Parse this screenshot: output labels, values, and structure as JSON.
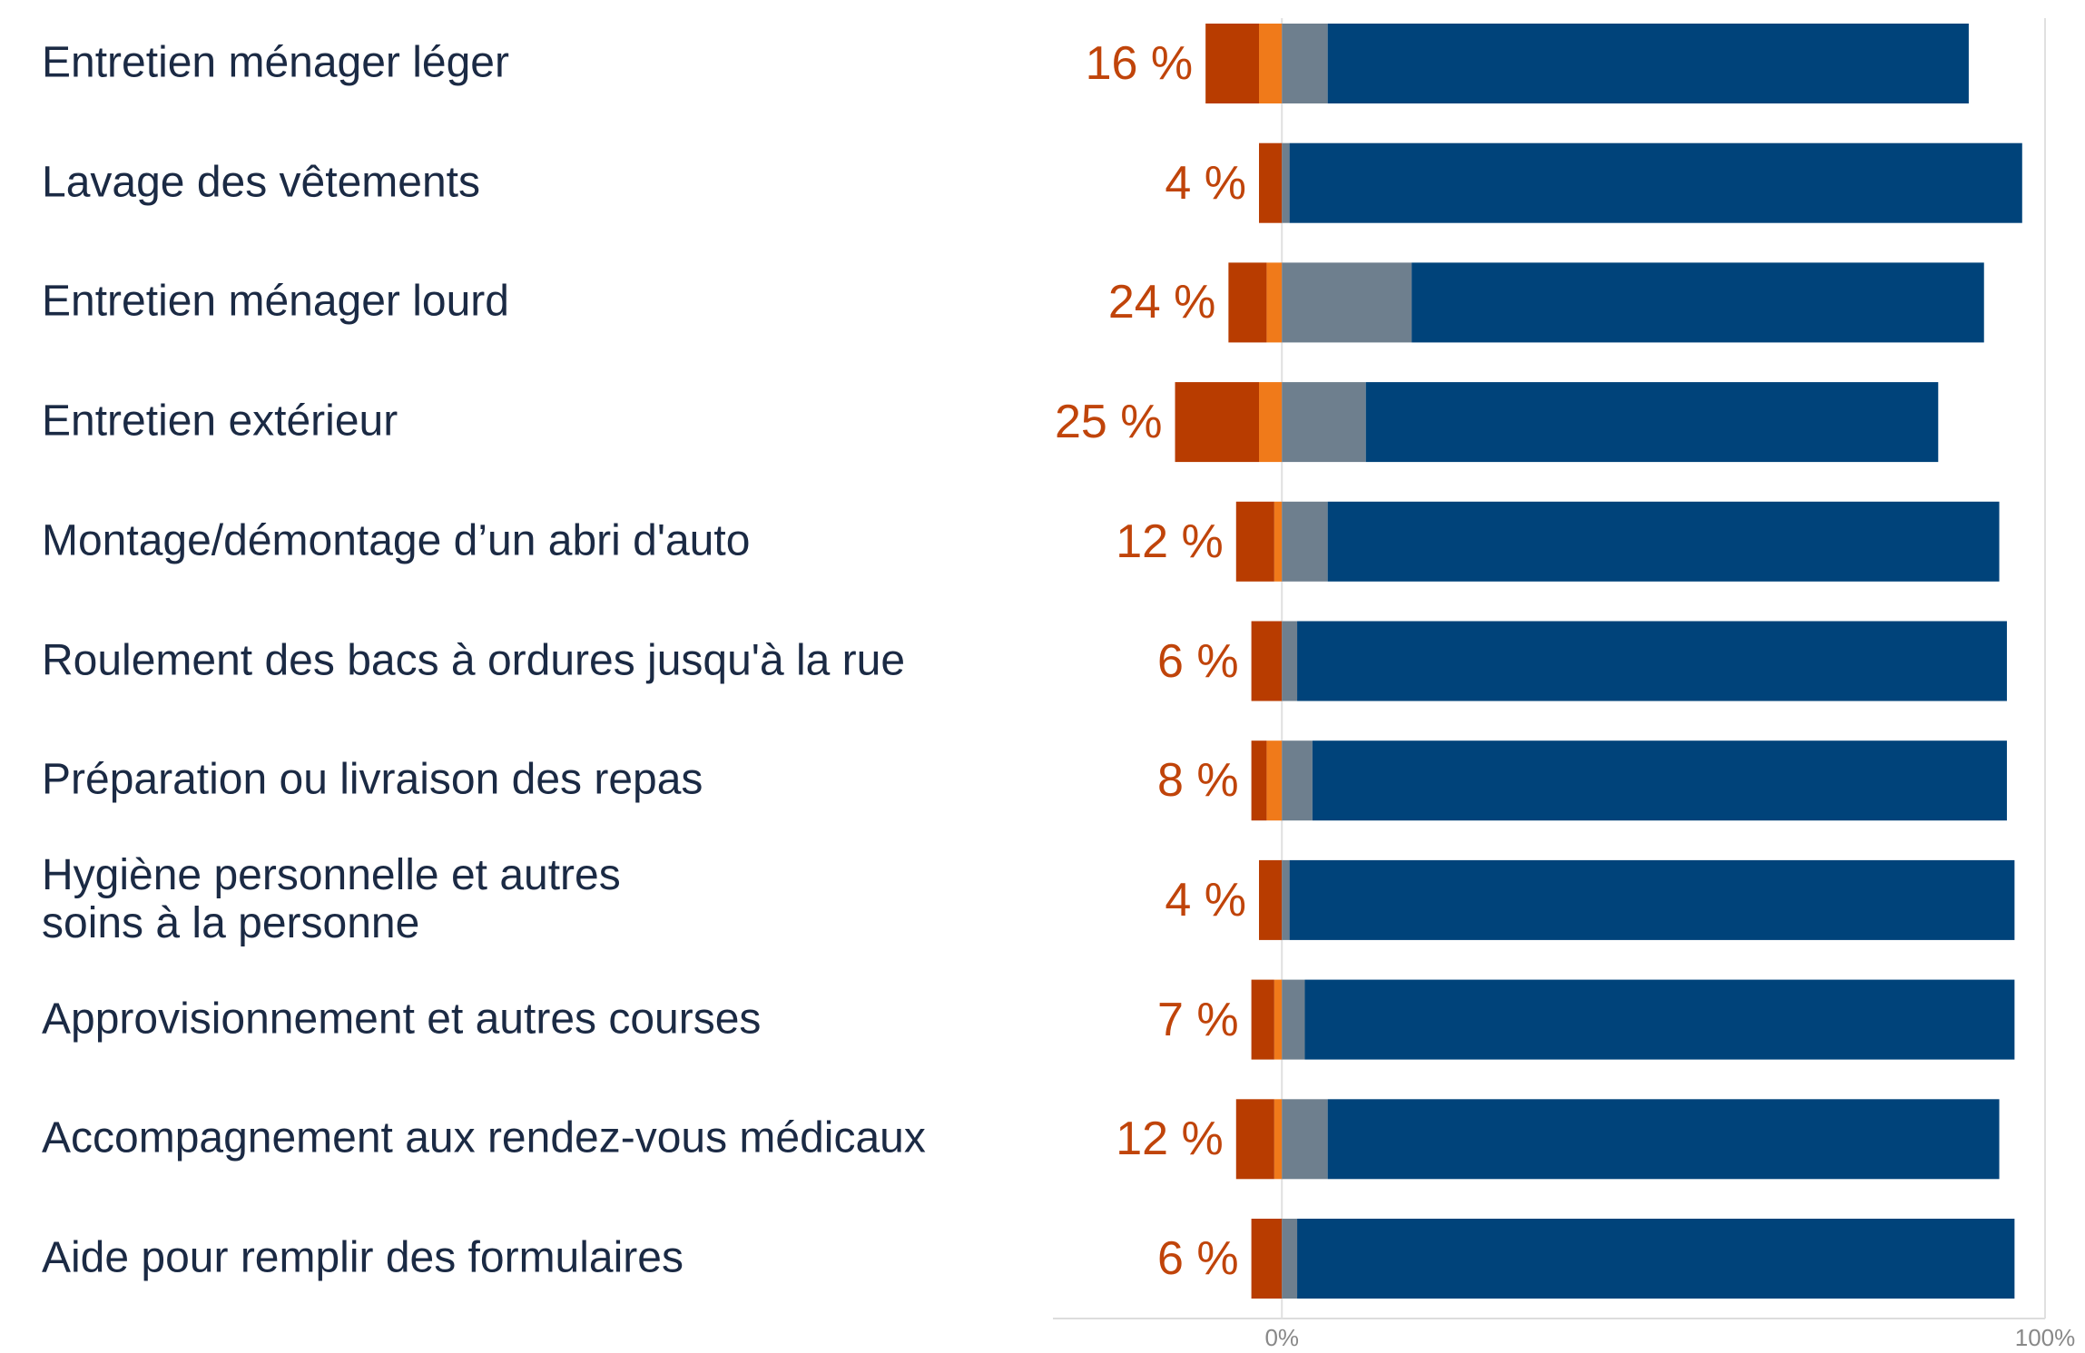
{
  "chart_data": {
    "type": "diverging_bar",
    "categories": [
      "Entretien ménager léger",
      "Lavage des vêtements",
      "Entretien ménager lourd",
      "Entretien extérieur",
      "Montage/démontage d’un abri d'auto",
      "Roulement des bacs à ordures jusqu'à la rue",
      "Préparation ou livraison des repas",
      "Hygiène personnelle et autres\nsoins à la personne",
      "Approvisionnement et autres courses",
      "Accompagnement aux rendez-vous médicaux",
      "Aide pour remplir des formulaires"
    ],
    "series": [
      {
        "color": "#b83c00",
        "values": [
          7,
          3,
          5,
          11,
          5,
          4,
          2,
          3,
          3,
          5,
          4
        ]
      },
      {
        "color": "#f07a1a",
        "values": [
          3,
          0,
          2,
          3,
          1,
          0,
          2,
          0,
          1,
          1,
          0
        ]
      },
      {
        "color": "#6e7f8e",
        "values": [
          6,
          1,
          17,
          11,
          6,
          2,
          4,
          1,
          3,
          6,
          2
        ]
      },
      {
        "color": "#00437a",
        "values": [
          84,
          96,
          75,
          75,
          88,
          93,
          91,
          95,
          93,
          88,
          94
        ]
      }
    ],
    "percent_labels": {
      "values": [
        16,
        4,
        24,
        25,
        12,
        6,
        8,
        4,
        7,
        12,
        6
      ],
      "value_labels": [
        "16 %",
        "4 %",
        "24 %",
        "25 %",
        "12 %",
        "6 %",
        "8 %",
        "4 %",
        "7 %",
        "12 %",
        "6 %"
      ]
    },
    "xlim": [
      -30,
      100
    ],
    "xticks": [
      {
        "value": 0,
        "label": "0%"
      },
      {
        "value": 100,
        "label": "100%"
      }
    ],
    "grid": true
  }
}
